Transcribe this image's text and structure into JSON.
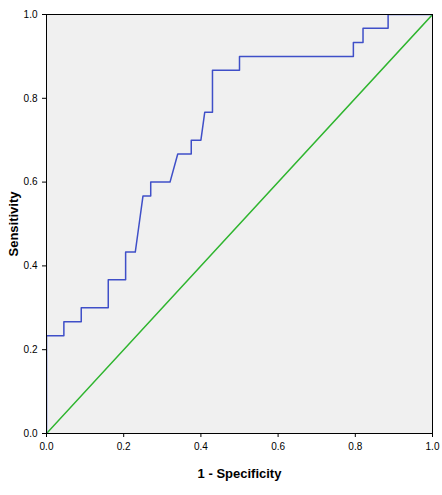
{
  "chart_data": {
    "type": "line",
    "x_label": "1 - Specificity",
    "y_label": "Sensitivity",
    "xlim": [
      0,
      1
    ],
    "ylim": [
      0,
      1
    ],
    "xticks": [
      {
        "value": 0,
        "label": "0.0"
      },
      {
        "value": 0.2,
        "label": "0.2"
      },
      {
        "value": 0.4,
        "label": "0.4"
      },
      {
        "value": 0.6,
        "label": "0.6"
      },
      {
        "value": 0.8,
        "label": "0.8"
      },
      {
        "value": 1,
        "label": "1.0"
      }
    ],
    "yticks": [
      {
        "value": 0,
        "label": "0.0"
      },
      {
        "value": 0.2,
        "label": "0.2"
      },
      {
        "value": 0.4,
        "label": "0.4"
      },
      {
        "value": 0.6,
        "label": "0.6"
      },
      {
        "value": 0.8,
        "label": "0.8"
      },
      {
        "value": 1,
        "label": "1.0"
      }
    ],
    "grid": false,
    "series": [
      {
        "color": "#3f4fc8",
        "x": [
          0,
          0,
          0.045,
          0.045,
          0.09,
          0.09,
          0.16,
          0.16,
          0.205,
          0.205,
          0.23,
          0.24,
          0.25,
          0.27,
          0.27,
          0.32,
          0.34,
          0.375,
          0.375,
          0.4,
          0.41,
          0.43,
          0.43,
          0.5,
          0.5,
          0.795,
          0.795,
          0.82,
          0.82,
          0.885,
          0.885,
          1
        ],
        "values": [
          0,
          0.233,
          0.233,
          0.267,
          0.267,
          0.3,
          0.3,
          0.367,
          0.367,
          0.433,
          0.433,
          0.5,
          0.567,
          0.567,
          0.6,
          0.6,
          0.667,
          0.667,
          0.7,
          0.7,
          0.767,
          0.767,
          0.867,
          0.867,
          0.9,
          0.9,
          0.933,
          0.933,
          0.967,
          0.967,
          1,
          1
        ]
      },
      {
        "color": "#2fb52f",
        "x": [
          0,
          1
        ],
        "values": [
          0,
          1
        ]
      }
    ]
  }
}
